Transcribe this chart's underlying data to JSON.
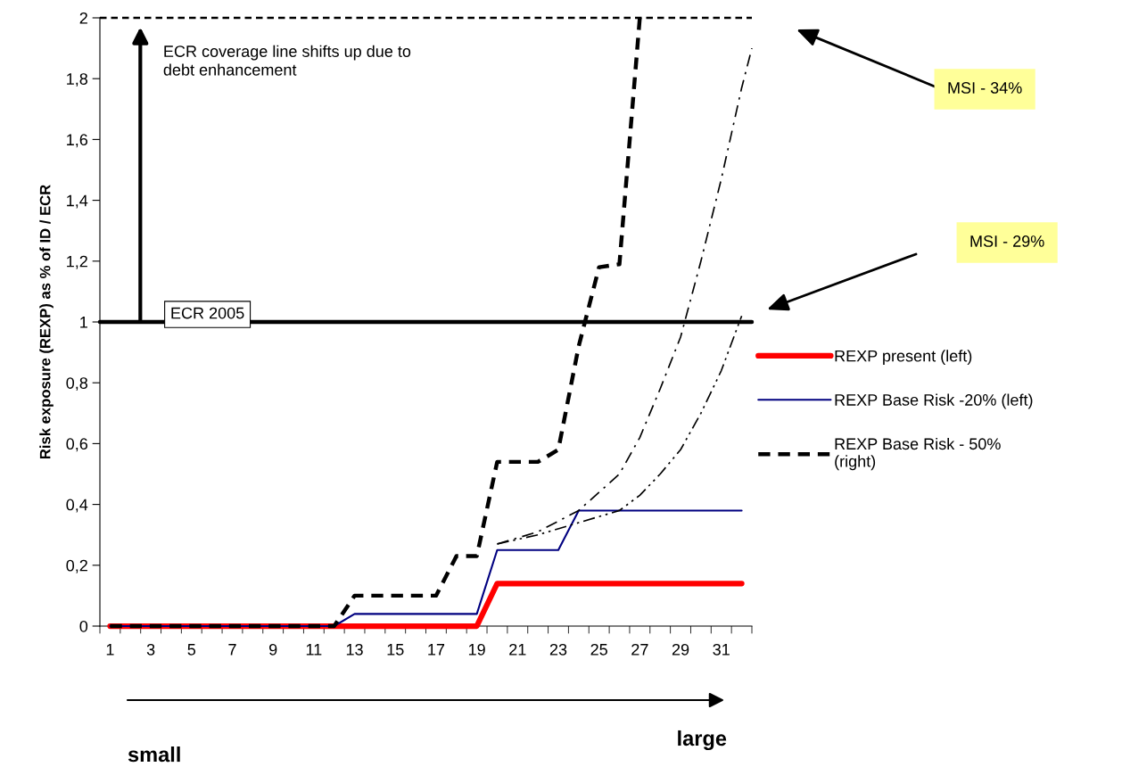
{
  "chart_data": {
    "type": "line",
    "ylabel": "Risk exposure (REXP) as % of ID / ECR",
    "x": [
      1,
      2,
      3,
      4,
      5,
      6,
      7,
      8,
      9,
      10,
      11,
      12,
      13,
      14,
      15,
      16,
      17,
      18,
      19,
      20,
      21,
      22,
      23,
      24,
      25,
      26,
      27,
      28,
      29,
      30,
      31,
      32
    ],
    "xlim": [
      0.5,
      32.5
    ],
    "xticks": [
      1,
      3,
      5,
      7,
      9,
      11,
      13,
      15,
      17,
      19,
      21,
      23,
      25,
      27,
      29,
      31
    ],
    "ylim": [
      0,
      2
    ],
    "yticks": [
      {
        "value": 0,
        "label": "0"
      },
      {
        "value": 0.2,
        "label": "0,2"
      },
      {
        "value": 0.4,
        "label": "0,4"
      },
      {
        "value": 0.6,
        "label": "0,6"
      },
      {
        "value": 0.8,
        "label": "0,8"
      },
      {
        "value": 1,
        "label": "1"
      },
      {
        "value": 1.2,
        "label": "1,2"
      },
      {
        "value": 1.4,
        "label": "1,4"
      },
      {
        "value": 1.6,
        "label": "1,6"
      },
      {
        "value": 1.8,
        "label": "1,8"
      },
      {
        "value": 2,
        "label": "2"
      }
    ],
    "grid": false,
    "legend": "right",
    "series": [
      {
        "name": "REXP present (left)",
        "color": "#ff0000",
        "line_style": "solid",
        "values": [
          0,
          0,
          0,
          0,
          0,
          0,
          0,
          0,
          0,
          0,
          0,
          0,
          0,
          0,
          0,
          0,
          0,
          0,
          0,
          0.14,
          0.14,
          0.14,
          0.14,
          0.14,
          0.14,
          0.14,
          0.14,
          0.14,
          0.14,
          0.14,
          0.14,
          0.14
        ]
      },
      {
        "name": "REXP Base Risk -20% (left)",
        "color": "#000080",
        "line_style": "solid",
        "values": [
          0,
          0,
          0,
          0,
          0,
          0,
          0,
          0,
          0,
          0,
          0,
          0,
          0.04,
          0.04,
          0.04,
          0.04,
          0.04,
          0.04,
          0.04,
          0.25,
          0.25,
          0.25,
          0.25,
          0.38,
          0.38,
          0.38,
          0.38,
          0.38,
          0.38,
          0.38,
          0.38,
          0.38
        ]
      },
      {
        "name": "REXP Base Risk - 50%\n(right)",
        "color": "#000000",
        "line_style": "dashed",
        "values": [
          0,
          0,
          0,
          0,
          0,
          0,
          0,
          0,
          0,
          0,
          0,
          0,
          0.1,
          0.1,
          0.1,
          0.1,
          0.1,
          0.23,
          0.23,
          0.54,
          0.54,
          0.54,
          0.58,
          0.92,
          1.18,
          1.19,
          2.0,
          null,
          null,
          null,
          null,
          null
        ]
      },
      {
        "color": "#000000",
        "line_style": "dashdot",
        "x": [
          20,
          22,
          24,
          26,
          27,
          28,
          29,
          30,
          31,
          32,
          32.5
        ],
        "values": [
          0.27,
          0.31,
          0.38,
          0.5,
          0.62,
          0.78,
          0.95,
          1.2,
          1.47,
          1.77,
          1.9
        ]
      },
      {
        "color": "#000000",
        "line_style": "dashdotdot",
        "x": [
          20,
          22,
          24,
          26,
          27,
          28,
          29,
          30,
          31,
          32
        ],
        "values": [
          0.27,
          0.3,
          0.34,
          0.38,
          0.43,
          0.5,
          0.58,
          0.7,
          0.84,
          1.02
        ]
      }
    ],
    "ref_lines": [
      {
        "axis": "y",
        "value": 1,
        "label": "ECR 2005",
        "color": "#000000",
        "line_style": "solid"
      },
      {
        "axis": "y",
        "value": 2,
        "color": "#000000",
        "line_style": "dashed"
      }
    ],
    "annotations": [
      "ECR coverage line shifts up due to\ndebt enhancement",
      "MSI - 34%",
      "MSI - 29%",
      "small",
      "large"
    ]
  }
}
